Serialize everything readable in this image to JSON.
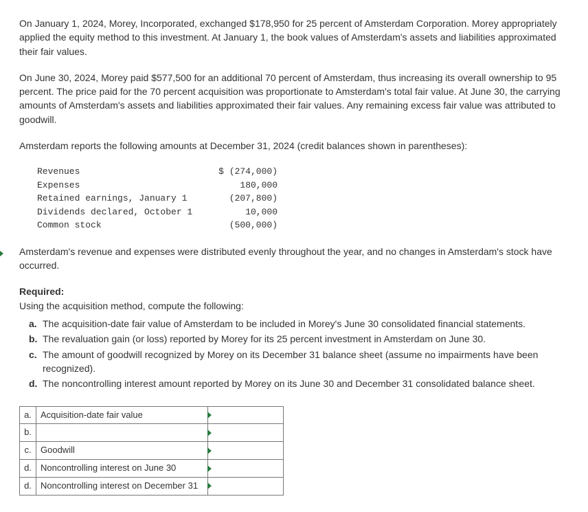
{
  "paragraphs": {
    "p1": "On January 1, 2024, Morey, Incorporated, exchanged $178,950 for 25 percent of Amsterdam Corporation. Morey appropriately applied the equity method to this investment. At January 1, the book values of Amsterdam's assets and liabilities approximated their fair values.",
    "p2": "On June 30, 2024, Morey paid $577,500 for an additional 70 percent of Amsterdam, thus increasing its overall ownership to 95 percent. The price paid for the 70 percent acquisition was proportionate to Amsterdam's total fair value. At June 30, the carrying amounts of Amsterdam's assets and liabilities approximated their fair values. Any remaining excess fair value was attributed to goodwill.",
    "p3": "Amsterdam reports the following amounts at December 31, 2024 (credit balances shown in parentheses):",
    "p4": "Amsterdam's revenue and expenses were distributed evenly throughout the year, and no changes in Amsterdam's stock have occurred.",
    "required_label": "Required:",
    "required_intro": "Using the acquisition method, compute the following:"
  },
  "financials": {
    "currency_prefix": "$",
    "rows": [
      {
        "label": "Revenues",
        "value": "(274,000)"
      },
      {
        "label": "Expenses",
        "value": "180,000"
      },
      {
        "label": "Retained earnings, January 1",
        "value": "(207,800)"
      },
      {
        "label": "Dividends declared, October 1",
        "value": "10,000"
      },
      {
        "label": "Common stock",
        "value": "(500,000)"
      }
    ]
  },
  "requirements": [
    {
      "letter": "a.",
      "text": "The acquisition-date fair value of Amsterdam to be included in Morey's June 30 consolidated financial statements."
    },
    {
      "letter": "b.",
      "text": "The revaluation gain (or loss) reported by Morey for its 25 percent investment in Amsterdam on June 30."
    },
    {
      "letter": "c.",
      "text": "The amount of goodwill recognized by Morey on its December 31 balance sheet (assume no impairments have been recognized)."
    },
    {
      "letter": "d.",
      "text": "The noncontrolling interest amount reported by Morey on its June 30 and December 31 consolidated balance sheet."
    }
  ],
  "answer_table": [
    {
      "letter": "a.",
      "label": "Acquisition-date fair value",
      "value": ""
    },
    {
      "letter": "b.",
      "label": "",
      "value": ""
    },
    {
      "letter": "c.",
      "label": "Goodwill",
      "value": ""
    },
    {
      "letter": "d.",
      "label": "Noncontrolling interest on June 30",
      "value": ""
    },
    {
      "letter": "d.",
      "label": "Noncontrolling interest on December 31",
      "value": ""
    }
  ],
  "styles": {
    "body_font_size": 14,
    "mono_font_size": 13,
    "text_color": "#333333",
    "triangle_color": "#2a7a3f",
    "border_color": "#777777",
    "background_color": "#ffffff"
  }
}
